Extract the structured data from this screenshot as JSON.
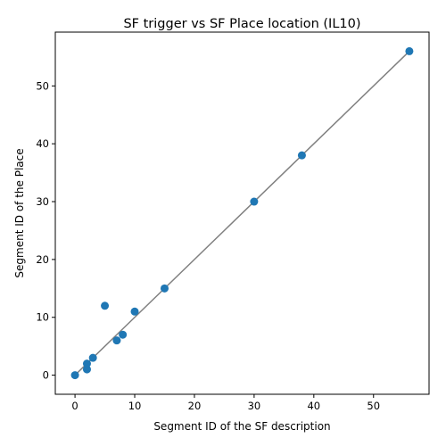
{
  "chart_data": {
    "type": "scatter",
    "title": "SF trigger vs SF Place location (IL10)",
    "xlabel": "Segment ID of the SF description",
    "ylabel": "Segment ID of the Place",
    "xlim": [
      -3.3,
      59.3
    ],
    "ylim": [
      -3.3,
      59.3
    ],
    "xticks": [
      0,
      10,
      20,
      30,
      40,
      50
    ],
    "yticks": [
      0,
      10,
      20,
      30,
      40,
      50
    ],
    "grid": false,
    "legend": "none",
    "colors": {
      "points": "#1f77b4",
      "reference_line": "#808080"
    },
    "reference_line": {
      "from": [
        0,
        0
      ],
      "to": [
        56,
        56
      ]
    },
    "points": [
      {
        "x": 0,
        "y": 0
      },
      {
        "x": 2,
        "y": 1
      },
      {
        "x": 2,
        "y": 2
      },
      {
        "x": 3,
        "y": 3
      },
      {
        "x": 5,
        "y": 12
      },
      {
        "x": 7,
        "y": 6
      },
      {
        "x": 8,
        "y": 7
      },
      {
        "x": 10,
        "y": 11
      },
      {
        "x": 15,
        "y": 15
      },
      {
        "x": 30,
        "y": 30
      },
      {
        "x": 38,
        "y": 38
      },
      {
        "x": 56,
        "y": 56
      }
    ]
  }
}
